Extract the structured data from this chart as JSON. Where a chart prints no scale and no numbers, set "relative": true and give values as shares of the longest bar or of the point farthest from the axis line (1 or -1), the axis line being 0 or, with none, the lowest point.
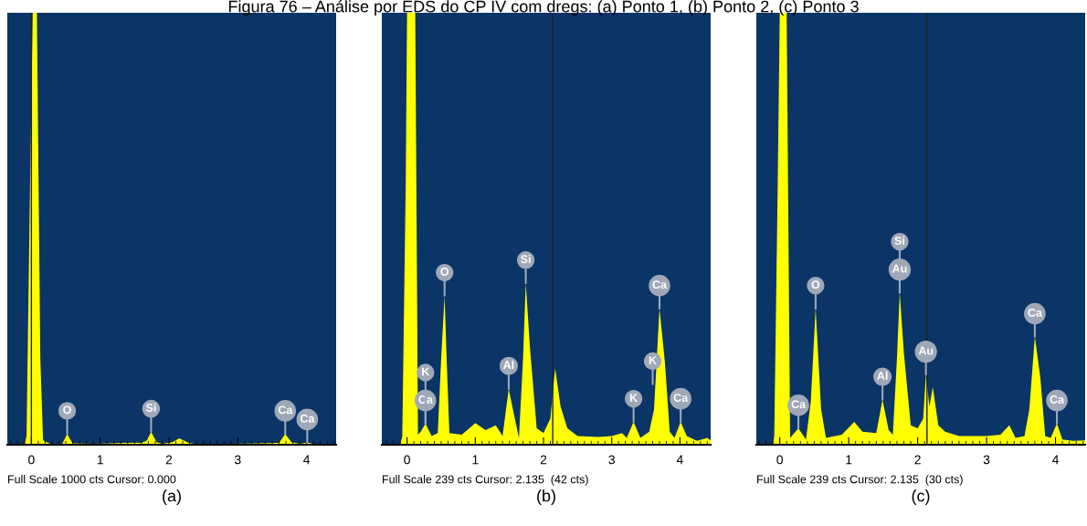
{
  "chart_data": [
    {
      "type": "area",
      "title": "Figura 76 – Análise por EDS do CP IV com dregs: (a) Ponto 1, (b) Ponto 2, (c) Ponto 3",
      "xlabel": "(a)",
      "relative": true,
      "xlim": [
        -0.35,
        4.43
      ],
      "xticks": [
        0,
        1,
        2,
        3,
        4
      ],
      "grid": false,
      "series": [
        {
          "color": "#ffff00",
          "x": [
            -0.35,
            -0.1,
            -0.07,
            -0.02,
            0.02,
            0.08,
            0.13,
            0.17,
            0.3,
            0.45,
            0.52,
            0.6,
            0.9,
            1.5,
            1.6,
            1.68,
            1.74,
            1.82,
            1.9,
            2.05,
            2.15,
            2.28,
            2.4,
            3.3,
            3.6,
            3.69,
            3.78,
            3.9,
            4.01,
            4.1,
            4.43
          ],
          "values": [
            0,
            0,
            0.02,
            0.6,
            1,
            1,
            0.2,
            0.01,
            0,
            0.002,
            0.025,
            0.003,
            0.002,
            0.005,
            0.004,
            0.01,
            0.03,
            0.006,
            0.002,
            0.006,
            0.015,
            0.005,
            0.001,
            0.003,
            0.004,
            0.025,
            0.006,
            0.002,
            0.005,
            0.002,
            0.002
          ]
        }
      ],
      "ref_lines": [
        {
          "axis": "x",
          "value": 0,
          "color": "#222222"
        }
      ],
      "annotations": [
        {
          "text": "O",
          "x": 0.52,
          "y": 0.025
        },
        {
          "text": "Si",
          "x": 1.74,
          "y": 0.03
        },
        {
          "text": "Ca",
          "x": 3.69,
          "y": 0.025
        },
        {
          "text": "Ca",
          "x": 4.01,
          "y": 0.005
        },
        "Full Scale 1000 cts Cursor: 0.000"
      ]
    },
    {
      "type": "area",
      "xlabel": "(b)",
      "relative": true,
      "xlim": [
        -0.37,
        4.45
      ],
      "xticks": [
        0,
        1,
        2,
        3,
        4
      ],
      "grid": false,
      "series": [
        {
          "color": "#ffff00",
          "x": [
            -0.37,
            -0.1,
            -0.07,
            -0.02,
            0.0,
            0.12,
            0.16,
            0.2,
            0.27,
            0.36,
            0.45,
            0.5,
            0.55,
            0.58,
            0.62,
            0.8,
            1.0,
            1.15,
            1.3,
            1.4,
            1.49,
            1.58,
            1.64,
            1.7,
            1.74,
            1.8,
            1.9,
            2.0,
            2.1,
            2.17,
            2.25,
            2.35,
            2.5,
            2.8,
            3.0,
            3.15,
            3.22,
            3.32,
            3.42,
            3.55,
            3.62,
            3.7,
            3.78,
            3.85,
            3.92,
            4.01,
            4.1,
            4.25,
            4.4,
            4.45
          ],
          "values": [
            0,
            0,
            0.02,
            0.6,
            1,
            1,
            0.023,
            0.03,
            0.049,
            0.02,
            0.027,
            0.2,
            0.345,
            0.2,
            0.027,
            0.023,
            0.05,
            0.034,
            0.045,
            0.02,
            0.129,
            0.06,
            0.016,
            0.2,
            0.374,
            0.228,
            0.038,
            0.027,
            0.06,
            0.177,
            0.089,
            0.038,
            0.02,
            0.018,
            0.02,
            0.027,
            0.016,
            0.053,
            0.016,
            0.03,
            0.082,
            0.315,
            0.19,
            0.03,
            0.016,
            0.053,
            0.02,
            0.009,
            0.016,
            0.01
          ]
        }
      ],
      "ref_lines": [
        {
          "axis": "x",
          "value": 2.135,
          "color": "#222222"
        }
      ],
      "annotations": [
        {
          "text": "Ca",
          "x": 0.27,
          "y": 0.049
        },
        {
          "text": "K",
          "x": 0.27,
          "y": 0.049
        },
        {
          "text": "O",
          "x": 0.55,
          "y": 0.345
        },
        {
          "text": "Al",
          "x": 1.49,
          "y": 0.129
        },
        {
          "text": "Si",
          "x": 1.74,
          "y": 0.374
        },
        {
          "text": "K",
          "x": 3.32,
          "y": 0.053
        },
        {
          "text": "K",
          "x": 3.6,
          "y": 0.14
        },
        {
          "text": "Ca",
          "x": 3.7,
          "y": 0.315
        },
        {
          "text": "Ca",
          "x": 4.01,
          "y": 0.053
        },
        "Full Scale 239 cts Cursor: 2.135  (42 cts)"
      ]
    },
    {
      "type": "area",
      "xlabel": "(c)",
      "relative": true,
      "xlim": [
        -0.34,
        4.43
      ],
      "xticks": [
        0,
        1,
        2,
        3,
        4
      ],
      "grid": false,
      "series": [
        {
          "color": "#ffff00",
          "x": [
            -0.34,
            -0.1,
            -0.08,
            -0.03,
            0.0,
            0.1,
            0.15,
            0.27,
            0.38,
            0.45,
            0.52,
            0.6,
            0.67,
            0.9,
            1.08,
            1.2,
            1.4,
            1.49,
            1.58,
            1.64,
            1.7,
            1.74,
            1.8,
            1.9,
            2.0,
            2.08,
            2.12,
            2.17,
            2.22,
            2.3,
            2.4,
            2.6,
            3.0,
            3.2,
            3.33,
            3.42,
            3.55,
            3.62,
            3.7,
            3.78,
            3.85,
            3.93,
            4.02,
            4.1,
            4.25,
            4.43
          ],
          "values": [
            0,
            0,
            0.02,
            0.6,
            1,
            1,
            0.016,
            0.038,
            0.012,
            0.1,
            0.315,
            0.082,
            0.016,
            0.023,
            0.053,
            0.03,
            0.027,
            0.104,
            0.034,
            0.023,
            0.2,
            0.352,
            0.213,
            0.045,
            0.038,
            0.06,
            0.162,
            0.089,
            0.133,
            0.045,
            0.03,
            0.02,
            0.02,
            0.023,
            0.045,
            0.016,
            0.02,
            0.082,
            0.25,
            0.155,
            0.02,
            0.016,
            0.049,
            0.012,
            0.009,
            0.01
          ]
        }
      ],
      "ref_lines": [
        {
          "axis": "x",
          "value": 2.135,
          "color": "#222222"
        }
      ],
      "annotations": [
        {
          "text": "Ca",
          "x": 0.27,
          "y": 0.038
        },
        {
          "text": "O",
          "x": 0.52,
          "y": 0.315
        },
        {
          "text": "Al",
          "x": 1.49,
          "y": 0.104
        },
        {
          "text": "Au",
          "x": 1.74,
          "y": 0.352
        },
        {
          "text": "Si",
          "x": 1.74,
          "y": 0.352
        },
        {
          "text": "Au",
          "x": 2.12,
          "y": 0.162
        },
        {
          "text": "Ca",
          "x": 3.7,
          "y": 0.25
        },
        {
          "text": "Ca",
          "x": 4.02,
          "y": 0.049
        },
        "Full Scale 239 cts Cursor: 2.135  (30 cts)"
      ]
    }
  ]
}
